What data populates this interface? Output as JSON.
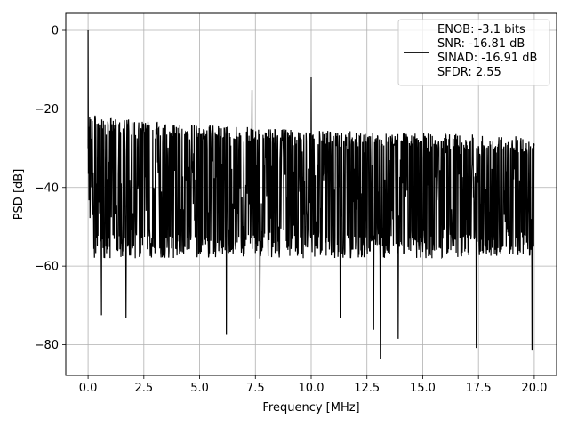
{
  "chart_data": {
    "type": "line",
    "xlabel": "Frequency [MHz]",
    "ylabel": "PSD [dB]",
    "xlim": [
      -1.0,
      21.0
    ],
    "ylim": [
      -87.8,
      4.3
    ],
    "xticks": [
      0.0,
      2.5,
      5.0,
      7.5,
      10.0,
      12.5,
      15.0,
      17.5,
      20.0
    ],
    "xtick_labels": [
      "0.0",
      "2.5",
      "5.0",
      "7.5",
      "10.0",
      "12.5",
      "15.0",
      "17.5",
      "20.0"
    ],
    "yticks": [
      0,
      -20,
      -40,
      -60,
      -80
    ],
    "ytick_labels": [
      "0",
      "−20",
      "−40",
      "−60",
      "−80"
    ],
    "grid": true,
    "legend_position": "top-right",
    "line_color": "#000000",
    "series": [
      {
        "legend_lines": [
          "ENOB: -3.1 bits",
          "SNR: -16.81 dB",
          "SINAD: -16.91 dB",
          "SFDR: 2.55"
        ],
        "spurs": [
          {
            "x": 0.0,
            "y": 0.0
          },
          {
            "x": 7.35,
            "y": -15.2
          },
          {
            "x": 10.0,
            "y": -11.8
          }
        ],
        "noise_upper_envelope": [
          [
            0.0,
            -21
          ],
          [
            0.3,
            -21.5
          ],
          [
            2.5,
            -23
          ],
          [
            5.0,
            -24
          ],
          [
            10.0,
            -25.5
          ],
          [
            15.0,
            -26
          ],
          [
            20.0,
            -27
          ]
        ],
        "noise_lower_typical": -58,
        "noise_lower_extremes": [
          {
            "x": 0.6,
            "y": -72.5
          },
          {
            "x": 1.7,
            "y": -73.2
          },
          {
            "x": 6.2,
            "y": -77.5
          },
          {
            "x": 7.7,
            "y": -73.5
          },
          {
            "x": 11.3,
            "y": -73.2
          },
          {
            "x": 12.8,
            "y": -76.2
          },
          {
            "x": 13.1,
            "y": -83.5
          },
          {
            "x": 13.9,
            "y": -78.5
          },
          {
            "x": 17.4,
            "y": -80.8
          },
          {
            "x": 19.9,
            "y": -81.5
          }
        ]
      }
    ]
  }
}
